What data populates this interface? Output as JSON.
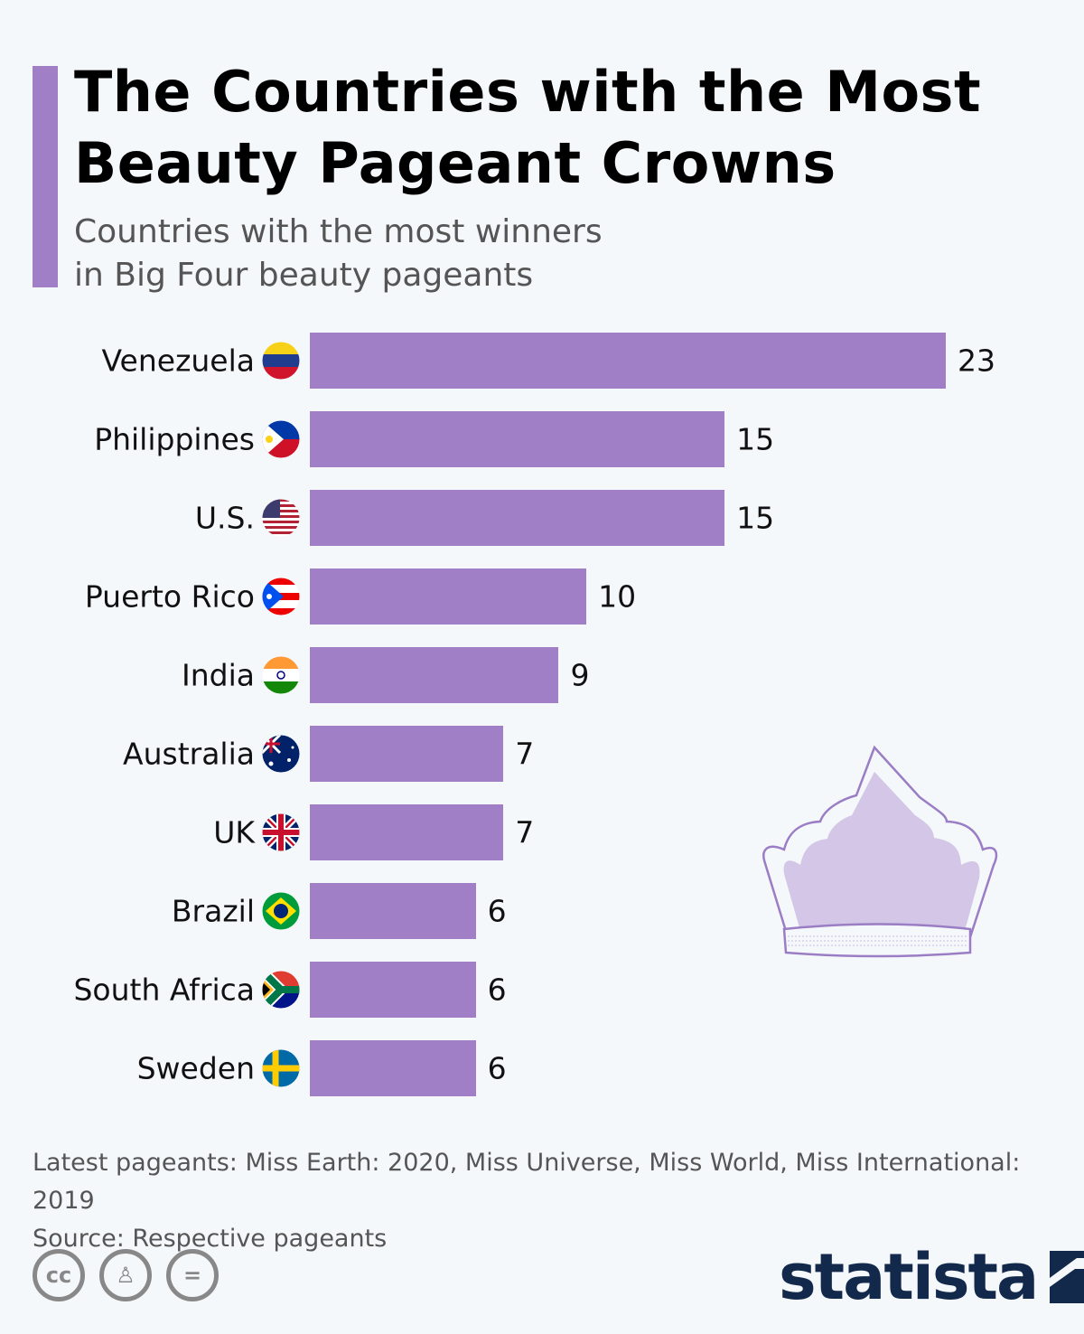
{
  "title": "The Countries with the Most Beauty Pageant Crowns",
  "subtitle_line1": "Countries with the most winners",
  "subtitle_line2": "in Big Four beauty pageants",
  "chart_data": {
    "type": "bar",
    "orientation": "horizontal",
    "title": "The Countries with the Most Beauty Pageant Crowns",
    "categories": [
      "Venezuela",
      "Philippines",
      "U.S.",
      "Puerto Rico",
      "India",
      "Australia",
      "UK",
      "Brazil",
      "South Africa",
      "Sweden"
    ],
    "values": [
      23,
      15,
      15,
      10,
      9,
      7,
      7,
      6,
      6,
      6
    ],
    "xlabel": "",
    "ylabel": "",
    "xlim": [
      0,
      23
    ],
    "grid": false,
    "bar_color": "#a07fc6"
  },
  "footer": {
    "note": "Latest pageants: Miss Earth: 2020, Miss Universe, Miss World, Miss International: 2019",
    "source": "Source: Respective pageants",
    "cc_icons": [
      "cc-icon",
      "attribution-icon",
      "no-derivatives-icon"
    ],
    "brand": "statista"
  }
}
